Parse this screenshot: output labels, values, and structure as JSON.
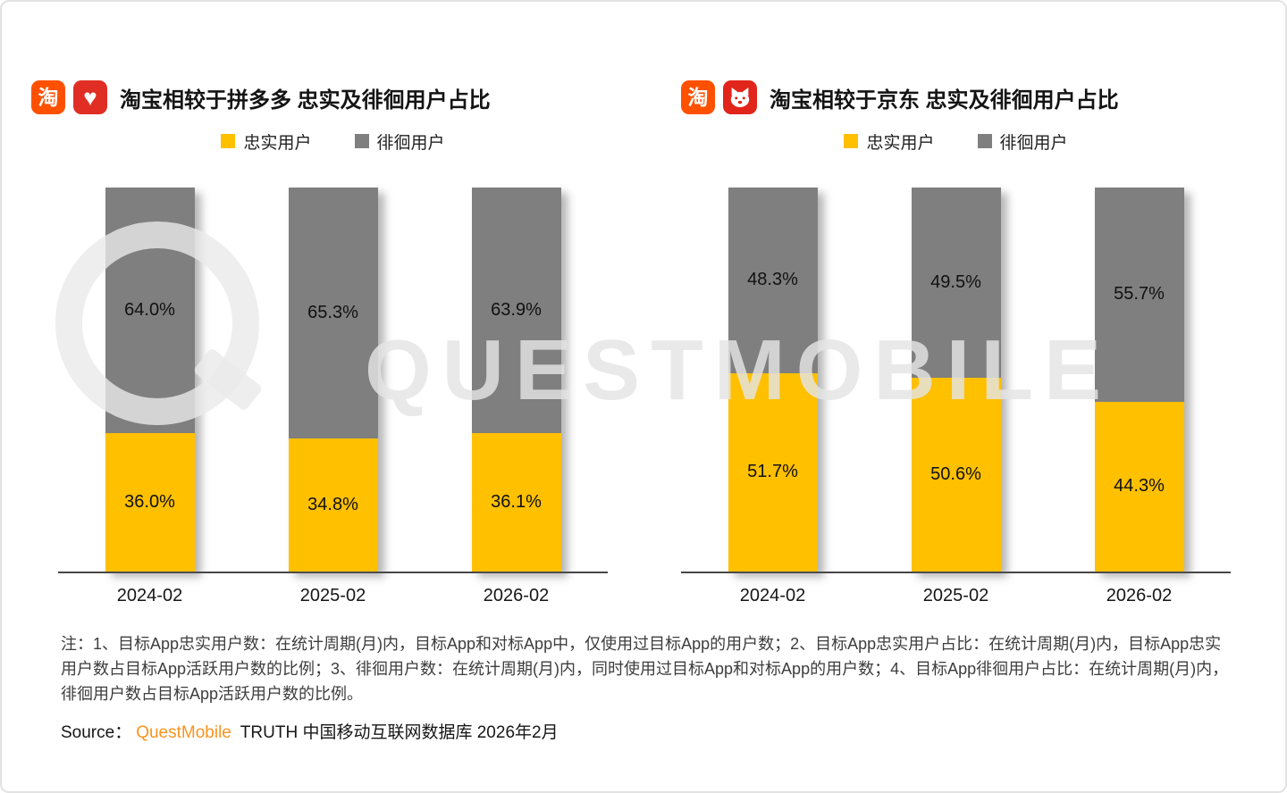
{
  "watermark": {
    "text": "QUESTMOBILE"
  },
  "icons": {
    "taobao_glyph": "淘",
    "pdd_glyph": "♥"
  },
  "note": "注：1、目标App忠实用户数：在统计周期(月)内，目标App和对标App中，仅使用过目标App的用户数；2、目标App忠实用户占比：在统计周期(月)内，目标App忠实用户数占目标App活跃用户数的比例；3、徘徊用户数：在统计周期(月)内，同时使用过目标App和对标App的用户数；4、目标App徘徊用户占比：在统计周期(月)内，徘徊用户数占目标App活跃用户数的比例。",
  "source": {
    "prefix": "Source：",
    "brand": "QuestMobile",
    "rest": " TRUTH 中国移动互联网数据库 2026年2月"
  },
  "chart_data": [
    {
      "type": "bar",
      "subtype": "stacked-percent",
      "title": "淘宝相较于拼多多 忠实及徘徊用户占比",
      "categories": [
        "2024-02",
        "2025-02",
        "2026-02"
      ],
      "series": [
        {
          "name": "忠实用户",
          "color": "#FFC000",
          "values": [
            36.0,
            34.8,
            36.1
          ]
        },
        {
          "name": "徘徊用户",
          "color": "#7F7F7F",
          "values": [
            64.0,
            65.3,
            63.9
          ]
        }
      ],
      "value_suffix": "%",
      "ylim": [
        0,
        100
      ],
      "legend_position": "top",
      "grid": false
    },
    {
      "type": "bar",
      "subtype": "stacked-percent",
      "title": "淘宝相较于京东 忠实及徘徊用户占比",
      "categories": [
        "2024-02",
        "2025-02",
        "2026-02"
      ],
      "series": [
        {
          "name": "忠实用户",
          "color": "#FFC000",
          "values": [
            51.7,
            50.6,
            44.3
          ]
        },
        {
          "name": "徘徊用户",
          "color": "#7F7F7F",
          "values": [
            48.3,
            49.5,
            55.7
          ]
        }
      ],
      "value_suffix": "%",
      "ylim": [
        0,
        100
      ],
      "legend_position": "top",
      "grid": false
    }
  ]
}
